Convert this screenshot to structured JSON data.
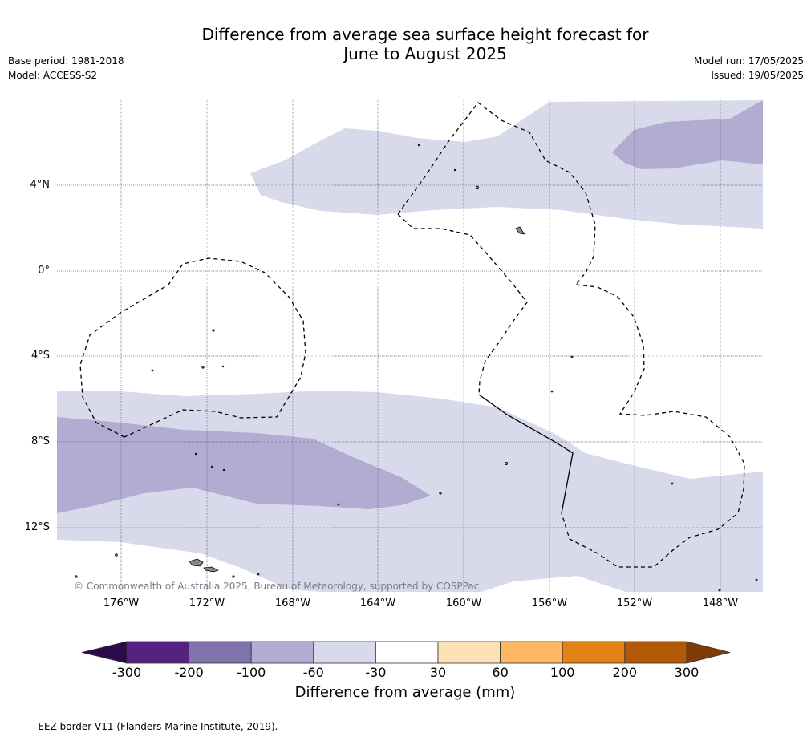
{
  "header": {
    "title_line1": "Difference from average sea surface height forecast for",
    "title_line2": "June to August 2025",
    "base_period": "Base period: 1981-2018",
    "model": "Model: ACCESS-S2",
    "model_run": "Model run: 17/05/2025",
    "issued": "Issued: 19/05/2025"
  },
  "map": {
    "lat_labels": [
      "4°N",
      "0°",
      "4°S",
      "8°S",
      "12°S"
    ],
    "lon_labels": [
      "176°W",
      "172°W",
      "168°W",
      "164°W",
      "160°W",
      "156°W",
      "152°W",
      "148°W"
    ],
    "copyright": "© Commonwealth of Australia 2025, Bureau of Meteorology, supported by COSPPac"
  },
  "colorbar": {
    "title": "Difference from average (mm)",
    "ticks": [
      "-300",
      "-200",
      "-100",
      "-60",
      "-30",
      "30",
      "60",
      "100",
      "200",
      "300"
    ],
    "colors": [
      "#2d0a4e",
      "#55237f",
      "#8073ac",
      "#b2abd2",
      "#d8daeb",
      "#ffffff",
      "#fee0b6",
      "#fdb863",
      "#e08214",
      "#b35806",
      "#7f3b08"
    ]
  },
  "footnote": "--  --  -- EEZ border V11 (Flanders Marine Institute, 2019)."
}
